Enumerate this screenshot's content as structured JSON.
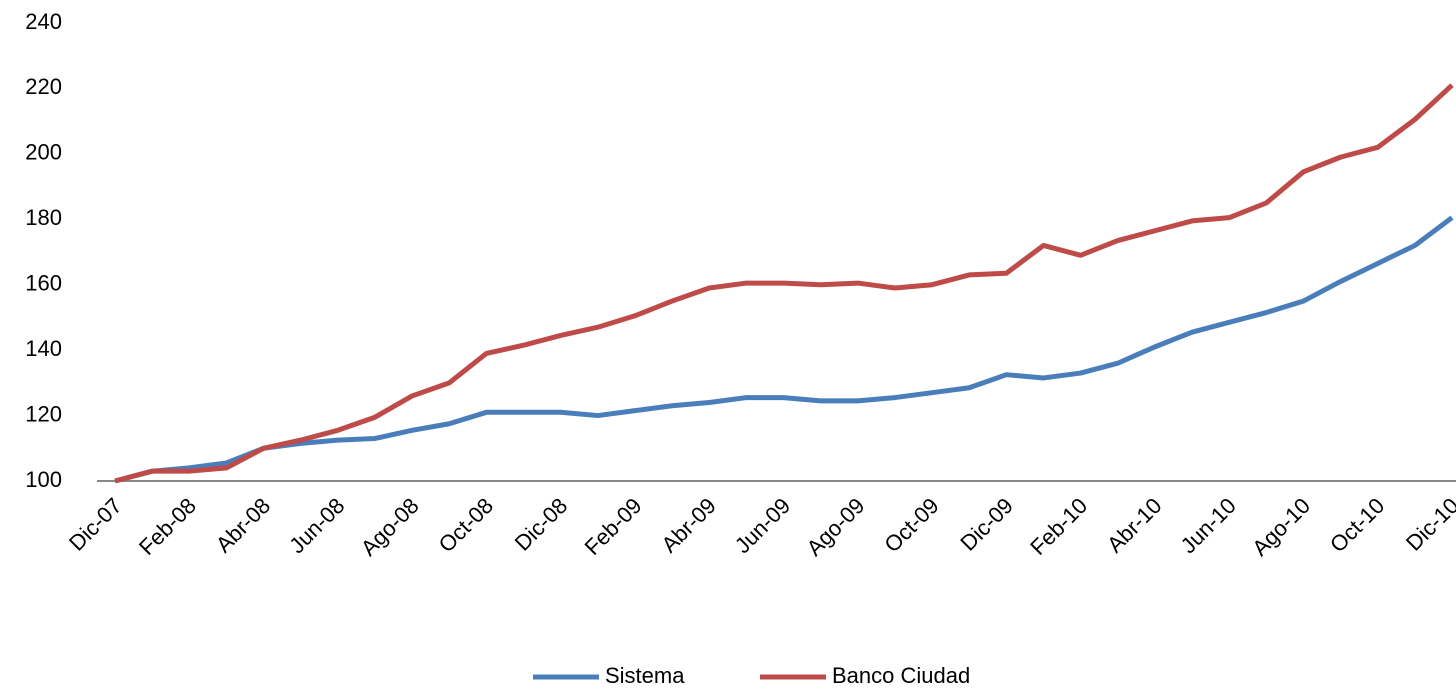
{
  "chart_data": {
    "type": "line",
    "categories": [
      "Dic-07",
      null,
      "Feb-08",
      null,
      "Abr-08",
      null,
      "Jun-08",
      null,
      "Ago-08",
      null,
      "Oct-08",
      null,
      "Dic-08",
      null,
      "Feb-09",
      null,
      "Abr-09",
      null,
      "Jun-09",
      null,
      "Ago-09",
      null,
      "Oct-09",
      null,
      "Dic-09",
      null,
      "Feb-10",
      null,
      "Abr-10",
      null,
      "Jun-10",
      null,
      "Ago-10",
      null,
      "Oct-10",
      null,
      "Dic-10"
    ],
    "series": [
      {
        "name": "Sistema",
        "color": "#4a7ebb",
        "values": [
          100,
          103,
          104,
          105.5,
          110,
          111.5,
          112.5,
          113,
          115.5,
          117.5,
          121,
          121,
          121,
          120,
          121.5,
          123,
          124,
          125.5,
          125.5,
          124.5,
          124.5,
          125.5,
          127,
          128.5,
          132.5,
          131.5,
          133,
          136,
          141,
          145.5,
          148.5,
          151.5,
          155,
          161,
          166.5,
          172,
          180.5
        ]
      },
      {
        "name": "Banco Ciudad",
        "color": "#be4b48",
        "values": [
          100,
          103,
          103,
          104,
          110,
          112.5,
          115.5,
          119.5,
          126,
          130,
          139,
          141.5,
          144.5,
          147,
          150.5,
          155,
          159,
          160.5,
          160.5,
          160,
          160.5,
          159,
          160,
          163,
          163.5,
          172,
          169,
          173.5,
          176.5,
          179.5,
          180.5,
          185,
          194.5,
          199,
          202,
          210.5,
          221
        ]
      }
    ],
    "ylim": [
      100,
      240
    ],
    "yticks": [
      100,
      120,
      140,
      160,
      180,
      200,
      220,
      240
    ],
    "grid": false,
    "legend": "bottom"
  }
}
